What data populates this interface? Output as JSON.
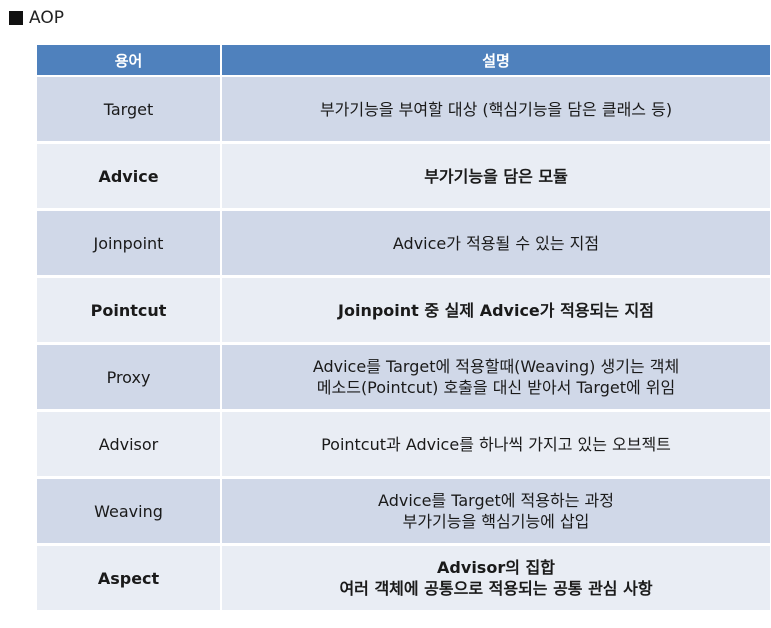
{
  "heading": {
    "text": "AOP"
  },
  "table": {
    "headers": [
      "용어",
      "설명"
    ],
    "rows": [
      {
        "term": "Target",
        "lines": [
          "부가기능을 부여할 대상 (핵심기능을 담은 클래스 등)"
        ],
        "bold": false
      },
      {
        "term": "Advice",
        "lines": [
          "부가기능을 담은 모듈"
        ],
        "bold": true
      },
      {
        "term": "Joinpoint",
        "lines": [
          "Advice가 적용될 수 있는 지점"
        ],
        "bold": false
      },
      {
        "term": "Pointcut",
        "lines": [
          "Joinpoint 중 실제 Advice가 적용되는 지점"
        ],
        "bold": true
      },
      {
        "term": "Proxy",
        "lines": [
          "Advice를 Target에 적용할때(Weaving) 생기는 객체",
          "메소드(Pointcut) 호출을 대신 받아서 Target에 위임"
        ],
        "bold": false
      },
      {
        "term": "Advisor",
        "lines": [
          "Pointcut과 Advice를 하나씩 가지고 있는 오브젝트"
        ],
        "bold": false
      },
      {
        "term": "Weaving",
        "lines": [
          "Advice를 Target에 적용하는 과정",
          "부가기능을 핵심기능에 삽입"
        ],
        "bold": false
      },
      {
        "term": "Aspect",
        "lines": [
          "Advisor의 집합",
          "여러 객체에 공통으로 적용되는 공통 관심 사항"
        ],
        "bold": true
      }
    ]
  },
  "colors": {
    "header_bg": "#4f81bd",
    "row_odd_bg": "#d0d8e8",
    "row_even_bg": "#e9edf4"
  }
}
